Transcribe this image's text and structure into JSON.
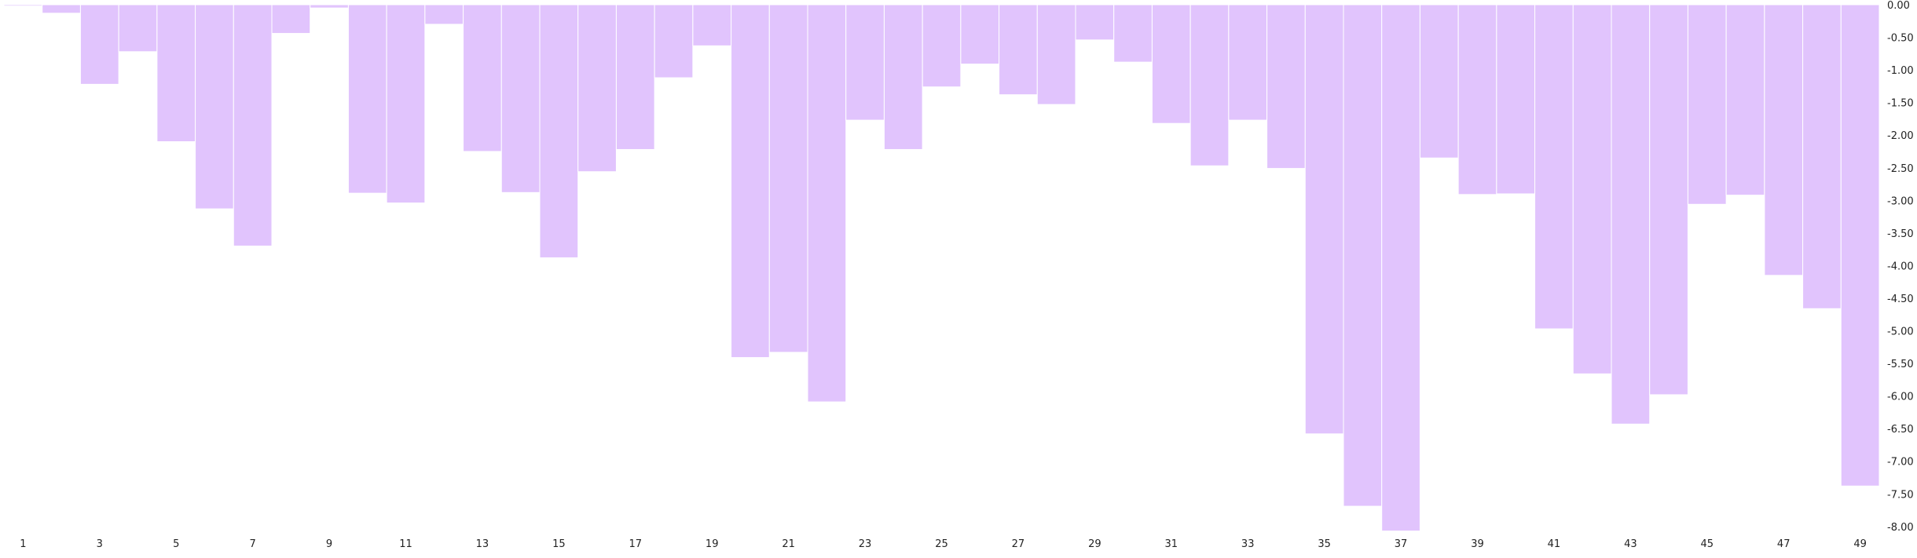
{
  "colors": {
    "bar": "#e1c4fd",
    "background": "#ffffff",
    "tick_text": "#222222"
  },
  "chart_data": {
    "type": "bar",
    "title": "",
    "xlabel": "",
    "ylabel": "",
    "ylim": [
      -8.2,
      0
    ],
    "y_axis_side": "right",
    "grid": false,
    "legend": "none",
    "x": [
      1,
      2,
      3,
      4,
      5,
      6,
      7,
      8,
      9,
      10,
      11,
      12,
      13,
      14,
      15,
      16,
      17,
      18,
      19,
      20,
      21,
      22,
      23,
      24,
      25,
      26,
      27,
      28,
      29,
      30,
      31,
      32,
      33,
      34,
      35,
      36,
      37,
      38,
      39,
      40,
      41,
      42,
      43,
      44,
      45,
      46,
      47,
      48,
      49
    ],
    "x_tick_labels": [
      "1",
      "3",
      "5",
      "7",
      "9",
      "11",
      "13",
      "15",
      "17",
      "19",
      "21",
      "23",
      "25",
      "27",
      "29",
      "31",
      "33",
      "35",
      "37",
      "39",
      "41",
      "43",
      "45",
      "47",
      "49"
    ],
    "y_tick_labels": [
      "0.00",
      "-0.50",
      "-1.00",
      "-1.50",
      "-2.00",
      "-2.50",
      "-3.00",
      "-3.50",
      "-4.00",
      "-4.50",
      "-5.00",
      "-5.50",
      "-6.00",
      "-6.50",
      "-7.00",
      "-7.50",
      "-8.00"
    ],
    "y_ticks": [
      0,
      -0.5,
      -1,
      -1.5,
      -2,
      -2.5,
      -3,
      -3.5,
      -4,
      -4.5,
      -5,
      -5.5,
      -6,
      -6.5,
      -7,
      -7.5,
      -8
    ],
    "values": [
      -0.02,
      -0.13,
      -1.22,
      -0.72,
      -2.1,
      -3.13,
      -3.7,
      -0.44,
      -0.05,
      -2.89,
      -3.04,
      -0.3,
      -2.25,
      -2.88,
      -3.88,
      -2.56,
      -2.22,
      -1.12,
      -0.63,
      -5.41,
      -5.33,
      -6.09,
      -1.77,
      -2.22,
      -1.26,
      -0.91,
      -1.38,
      -1.53,
      -0.54,
      -0.88,
      -1.82,
      -2.47,
      -1.77,
      -2.51,
      -6.58,
      -7.69,
      -8.07,
      -2.35,
      -2.91,
      -2.9,
      -4.97,
      -5.66,
      -6.43,
      -5.98,
      -3.06,
      -2.92,
      -4.15,
      -4.66,
      -7.38
    ]
  }
}
